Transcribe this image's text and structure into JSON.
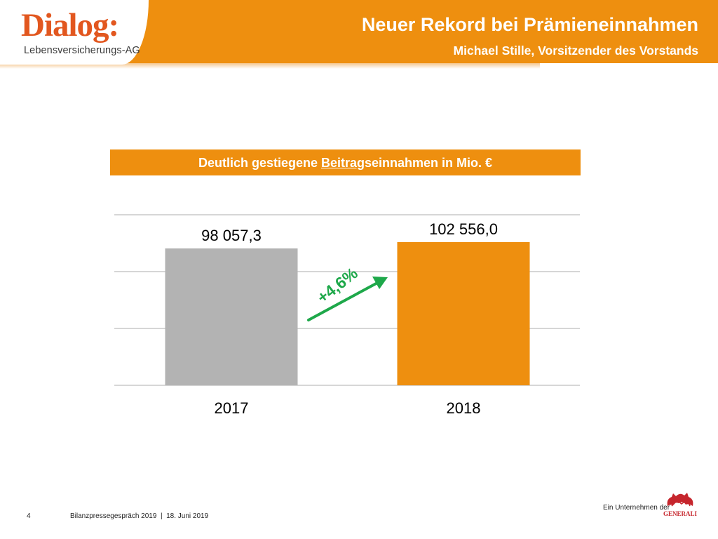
{
  "header": {
    "logo_word": "Dialog:",
    "logo_sub": "Lebensversicherungs-AG",
    "title": "Neuer Rekord bei Prämieneinnahmen",
    "subtitle": "Michael Stille, Vorsitzender des Vorstands"
  },
  "chart_data": {
    "type": "bar",
    "title_parts": [
      "Deutlich gestiegene ",
      "Beitrag",
      "seinnahmen in Mio. €"
    ],
    "categories": [
      "2017",
      "2018"
    ],
    "values": [
      98057.3,
      102556.0
    ],
    "value_labels": [
      "98 057,3",
      "102 556,0"
    ],
    "bar_colors": [
      "#b3b3b3",
      "#ee8f0f"
    ],
    "annotation": {
      "text": "+4,6%",
      "color": "#1ea84a"
    },
    "grid": true,
    "xlabel": "",
    "ylabel": ""
  },
  "footer": {
    "page_number": "4",
    "event": "Bilanzpressegespräch 2019  |  18. Juni 2019",
    "parent_label": "Ein Unternehmen der",
    "parent_logo": "GENERALI"
  },
  "colors": {
    "brand_orange": "#ee8f0f",
    "logo_red": "#e2571f",
    "generali_red": "#c6262d"
  }
}
